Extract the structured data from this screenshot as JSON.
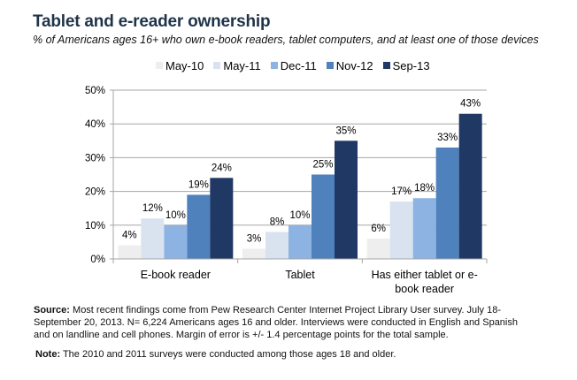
{
  "title": "Tablet and e-reader ownership",
  "subtitle": "% of Americans ages 16+ who own e-book readers, tablet computers, and at least one of those devices",
  "footer": {
    "source_label": "Source:",
    "source_text": " Most recent findings come from Pew Research Center Internet Project Library User survey. July 18-September 20, 2013. N= 6,224 Americans ages 16 and older. Interviews were conducted in English and Spanish and on landline and cell phones. Margin of error is +/- 1.4 percentage points for the total sample.",
    "note_label": "Note:",
    "note_text": " The 2010 and 2011 surveys were conducted among those ages 18 and older."
  },
  "chart_data": {
    "type": "bar",
    "title": "Tablet and e-reader ownership",
    "subtitle": "% of Americans ages 16+ who own e-book readers, tablet computers, and at least one of those devices",
    "xlabel": "",
    "ylabel": "",
    "ylim": [
      0,
      50
    ],
    "yticks": [
      0,
      10,
      20,
      30,
      40,
      50
    ],
    "ytick_labels": [
      "0%",
      "10%",
      "20%",
      "30%",
      "40%",
      "50%"
    ],
    "grid": true,
    "legend_position": "top-center",
    "categories": [
      "E-book reader",
      "Tablet",
      "Has either tablet or e-book reader"
    ],
    "series": [
      {
        "name": "May-10",
        "color": "#eeeeee",
        "values": [
          4,
          3,
          6
        ]
      },
      {
        "name": "May-11",
        "color": "#d9e3f0",
        "values": [
          12,
          8,
          17
        ]
      },
      {
        "name": "Dec-11",
        "color": "#8db3e2",
        "values": [
          10,
          10,
          18
        ]
      },
      {
        "name": "Nov-12",
        "color": "#4f81bd",
        "values": [
          19,
          25,
          33
        ]
      },
      {
        "name": "Sep-13",
        "color": "#1f3864",
        "values": [
          24,
          35,
          43
        ]
      }
    ],
    "data_labels": [
      [
        "4%",
        "3%",
        "6%"
      ],
      [
        "12%",
        "8%",
        "17%"
      ],
      [
        "10%",
        "10%",
        "18%"
      ],
      [
        "19%",
        "25%",
        "33%"
      ],
      [
        "24%",
        "35%",
        "43%"
      ]
    ]
  }
}
